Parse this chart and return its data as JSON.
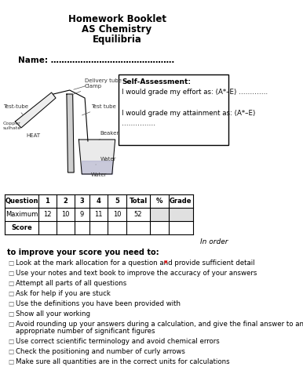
{
  "title_lines": [
    "Homework Booklet",
    "AS Chemistry",
    "Equilibria"
  ],
  "name_label": "Name: ……………………………………….",
  "self_assessment_title": "Self-Assessment:",
  "self_assessment_line1": "I would grade my effort as: (A*–E) ………….",
  "self_assessment_line2": "I would grade my attainment as: (A*–E)",
  "self_assessment_line3": "……………",
  "table_headers": [
    "Question",
    "1",
    "2",
    "3",
    "4",
    "5",
    "Total",
    "%",
    "Grade"
  ],
  "table_max": [
    "Maximum",
    "12",
    "10",
    "9",
    "11",
    "10",
    "52",
    "",
    ""
  ],
  "table_score": [
    "Score",
    "",
    "",
    "",
    "",
    "",
    "",
    "",
    ""
  ],
  "in_order_text": "In order",
  "improve_heading": "to improve your score you need to:",
  "bullet_points": [
    "Look at the mark allocation for a question and provide sufficient detail",
    "Use your notes and text book to improve the accuracy of your answers",
    "Attempt all parts of all questions",
    "Ask for help if you are stuck",
    "Use the definitions you have been provided with",
    "Show all your working",
    "Avoid rounding up your answers during a calculation, and give the final answer to an\nappropriate number of significant figures",
    "Use correct scientific terminology and avoid chemical errors",
    "Check the positioning and number of curly arrows",
    "Make sure all quantities are in the correct units for calculations"
  ],
  "bg_color": "#ffffff",
  "text_color": "#000000",
  "table_line_color": "#000000",
  "box_color": "#000000"
}
